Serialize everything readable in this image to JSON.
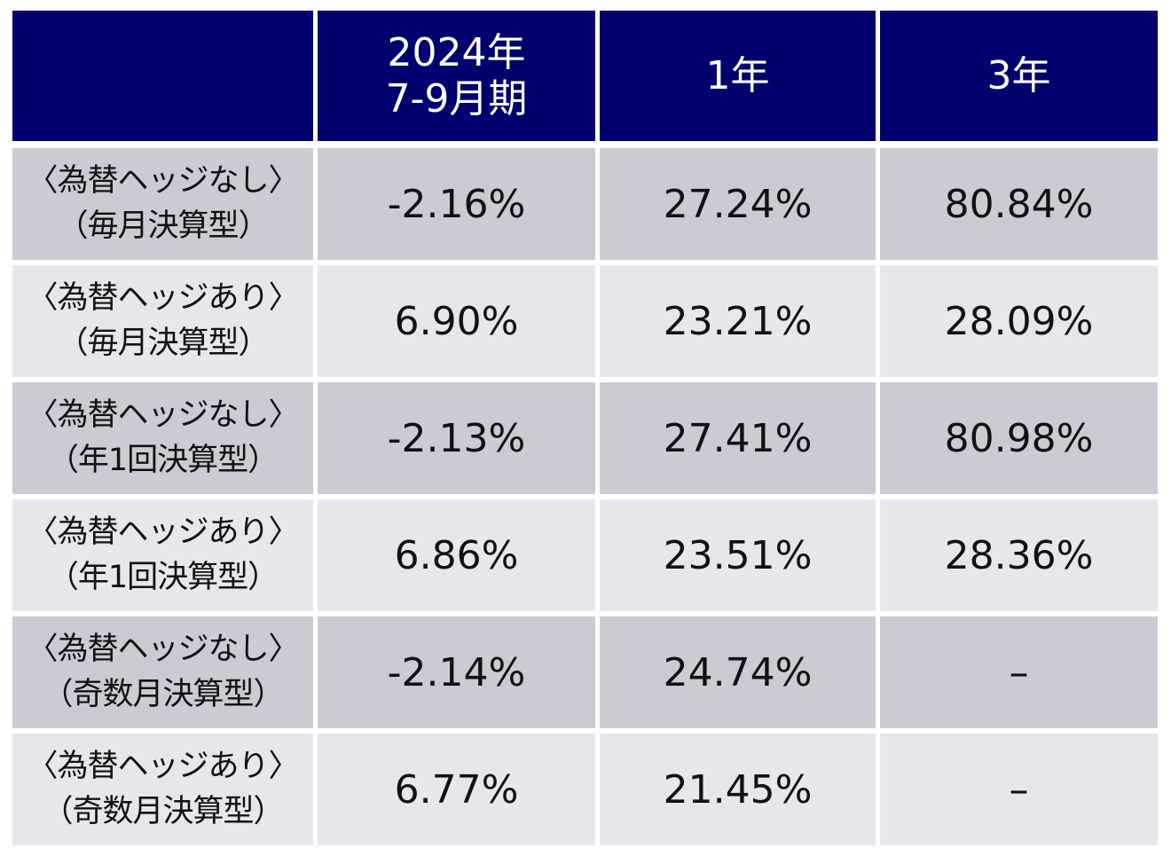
{
  "colors": {
    "header_bg": "#00006e",
    "header_text": "#ffffff",
    "row_dark": "#cbcbd5",
    "row_light": "#e6e6ec",
    "divider": "#ffffff",
    "text": "#111111"
  },
  "chart_data": {
    "type": "table",
    "columns": [
      {
        "lines": [
          ""
        ]
      },
      {
        "lines": [
          "2024年",
          "7-9月期"
        ]
      },
      {
        "lines": [
          "1年"
        ]
      },
      {
        "lines": [
          "3年"
        ]
      }
    ],
    "rows": [
      {
        "label": [
          "〈為替ヘッジなし〉",
          "（毎月決算型）"
        ],
        "values": [
          "-2.16%",
          "27.24%",
          "80.84%"
        ],
        "shade": "dark"
      },
      {
        "label": [
          "〈為替ヘッジあり〉",
          "（毎月決算型）"
        ],
        "values": [
          "6.90%",
          "23.21%",
          "28.09%"
        ],
        "shade": "light"
      },
      {
        "label": [
          "〈為替ヘッジなし〉",
          "（年1回決算型）"
        ],
        "values": [
          "-2.13%",
          "27.41%",
          "80.98%"
        ],
        "shade": "dark"
      },
      {
        "label": [
          "〈為替ヘッジあり〉",
          "（年1回決算型）"
        ],
        "values": [
          "6.86%",
          "23.51%",
          "28.36%"
        ],
        "shade": "light"
      },
      {
        "label": [
          "〈為替ヘッジなし〉",
          "（奇数月決算型）"
        ],
        "values": [
          "-2.14%",
          "24.74%",
          "–"
        ],
        "shade": "dark"
      },
      {
        "label": [
          "〈為替ヘッジあり〉",
          "（奇数月決算型）"
        ],
        "values": [
          "6.77%",
          "21.45%",
          "–"
        ],
        "shade": "light"
      }
    ]
  }
}
